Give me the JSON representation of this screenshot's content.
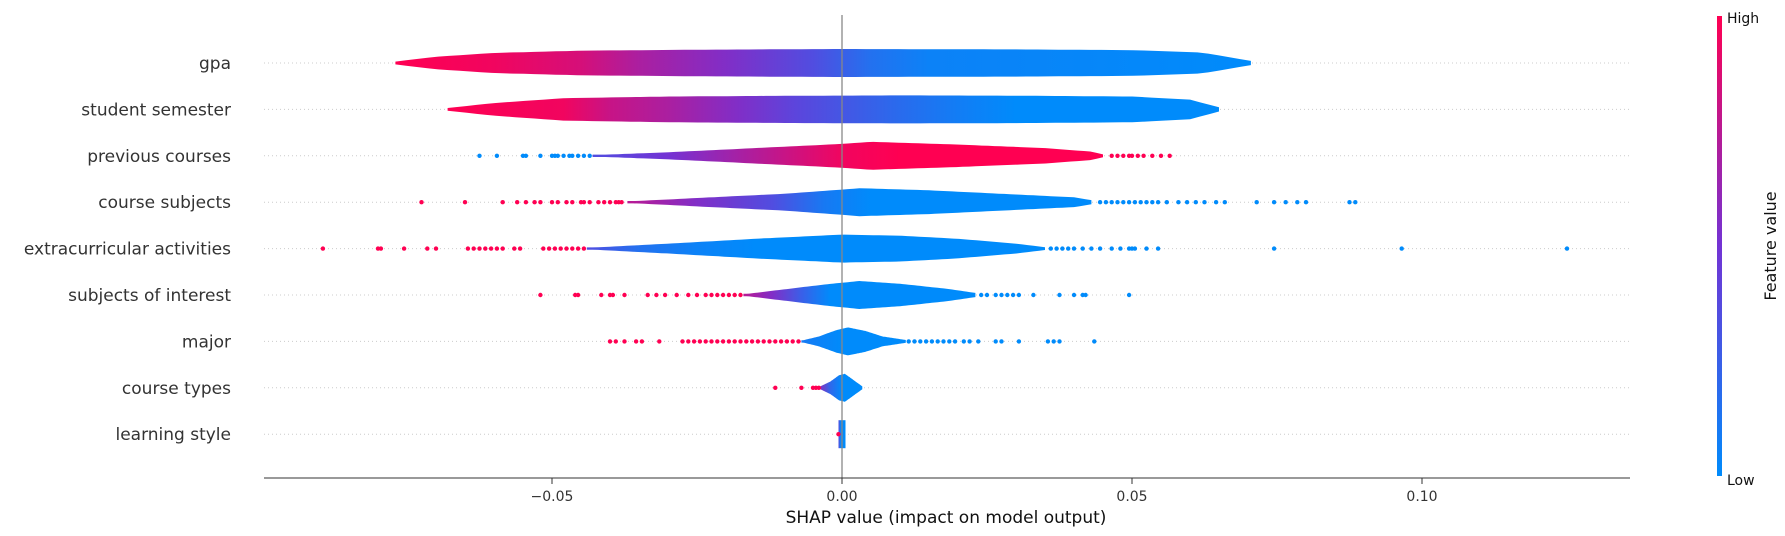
{
  "chart_data": {
    "type": "violin",
    "xlabel": "SHAP value (impact on model output)",
    "xlim": [
      -0.1,
      0.136
    ],
    "x_ticks": [
      -0.05,
      0.0,
      0.05,
      0.1
    ],
    "x_tick_labels": [
      "−0.05",
      "0.00",
      "0.05",
      "0.10"
    ],
    "colorbar": {
      "title": "Feature value",
      "high_label": "High",
      "low_label": "Low",
      "high_color": "#ff0052",
      "low_color": "#008bfb"
    },
    "features": [
      {
        "name": "gpa",
        "range": [
          -0.077,
          0.0705
        ],
        "width": [
          [
            -0.077,
            0.1
          ],
          [
            -0.07,
            0.45
          ],
          [
            -0.06,
            0.72
          ],
          [
            -0.045,
            0.88
          ],
          [
            -0.025,
            0.95
          ],
          [
            0.0,
            1.0
          ],
          [
            0.03,
            0.97
          ],
          [
            0.05,
            0.92
          ],
          [
            0.062,
            0.75
          ],
          [
            0.0705,
            0.15
          ]
        ],
        "color": [
          [
            -0.077,
            1
          ],
          [
            -0.06,
            0.95
          ],
          [
            -0.045,
            0.85
          ],
          [
            -0.035,
            0.7
          ],
          [
            -0.02,
            0.55
          ],
          [
            -0.005,
            0.35
          ],
          [
            0.005,
            0.15
          ],
          [
            0.015,
            0.05
          ],
          [
            0.0705,
            0.0
          ]
        ],
        "outliers": []
      },
      {
        "name": "student semester",
        "range": [
          -0.068,
          0.065
        ],
        "width": [
          [
            -0.068,
            0.1
          ],
          [
            -0.06,
            0.45
          ],
          [
            -0.048,
            0.8
          ],
          [
            -0.03,
            0.92
          ],
          [
            -0.01,
            0.97
          ],
          [
            0.01,
            1.0
          ],
          [
            0.03,
            0.98
          ],
          [
            0.05,
            0.92
          ],
          [
            0.06,
            0.7
          ],
          [
            0.065,
            0.15
          ]
        ],
        "color": [
          [
            -0.068,
            1
          ],
          [
            -0.048,
            0.95
          ],
          [
            -0.04,
            0.8
          ],
          [
            -0.03,
            0.7
          ],
          [
            -0.018,
            0.55
          ],
          [
            -0.008,
            0.4
          ],
          [
            0.0,
            0.3
          ],
          [
            0.01,
            0.18
          ],
          [
            0.02,
            0.08
          ],
          [
            0.03,
            0.0
          ],
          [
            0.065,
            0.0
          ]
        ],
        "outliers": []
      },
      {
        "name": "previous courses",
        "range": [
          -0.043,
          0.045
        ],
        "width": [
          [
            -0.043,
            0.05
          ],
          [
            -0.03,
            0.25
          ],
          [
            -0.015,
            0.55
          ],
          [
            0.0,
            0.85
          ],
          [
            0.005,
            1.0
          ],
          [
            0.02,
            0.8
          ],
          [
            0.035,
            0.55
          ],
          [
            0.043,
            0.3
          ],
          [
            0.045,
            0.1
          ]
        ],
        "color": [
          [
            -0.043,
            0.35
          ],
          [
            -0.03,
            0.5
          ],
          [
            -0.02,
            0.65
          ],
          [
            -0.01,
            0.8
          ],
          [
            0.0,
            0.95
          ],
          [
            0.01,
            1.0
          ],
          [
            0.045,
            1.0
          ]
        ],
        "outliers": [
          {
            "color": "low",
            "x": [
              -0.0625,
              -0.0595,
              -0.055,
              -0.0545,
              -0.052,
              -0.05,
              -0.0495,
              -0.049,
              -0.048,
              -0.047,
              -0.0465,
              -0.0455,
              -0.0445,
              -0.0435
            ]
          },
          {
            "color": "high",
            "x": [
              0.0465,
              0.0475,
              0.0485,
              0.0495,
              0.05,
              0.051,
              0.052,
              0.0535,
              0.055,
              0.0565
            ]
          }
        ]
      },
      {
        "name": "course subjects",
        "range": [
          -0.037,
          0.043
        ],
        "width": [
          [
            -0.037,
            0.05
          ],
          [
            -0.025,
            0.3
          ],
          [
            -0.01,
            0.6
          ],
          [
            0.0,
            0.9
          ],
          [
            0.003,
            1.0
          ],
          [
            0.015,
            0.85
          ],
          [
            0.03,
            0.55
          ],
          [
            0.04,
            0.35
          ],
          [
            0.043,
            0.15
          ]
        ],
        "color": [
          [
            -0.037,
            0.75
          ],
          [
            -0.025,
            0.55
          ],
          [
            -0.012,
            0.35
          ],
          [
            -0.003,
            0.1
          ],
          [
            0.005,
            0.0
          ],
          [
            0.043,
            0.0
          ]
        ],
        "outliers": [
          {
            "color": "high",
            "x": [
              -0.0725,
              -0.065,
              -0.0585,
              -0.056,
              -0.0545,
              -0.053,
              -0.052,
              -0.05,
              -0.049,
              -0.0475,
              -0.0465,
              -0.045,
              -0.0445,
              -0.0435,
              -0.042,
              -0.041,
              -0.04,
              -0.039,
              -0.0385,
              -0.038
            ]
          },
          {
            "color": "low",
            "x": [
              0.0445,
              0.0455,
              0.0465,
              0.0475,
              0.0485,
              0.0495,
              0.0505,
              0.0515,
              0.0525,
              0.0535,
              0.0545,
              0.056,
              0.058,
              0.0595,
              0.061,
              0.0625,
              0.0645,
              0.066,
              0.0715,
              0.0745,
              0.0765,
              0.0785,
              0.08,
              0.0875,
              0.0885
            ]
          }
        ]
      },
      {
        "name": "extracurricular activities",
        "range": [
          -0.044,
          0.035
        ],
        "width": [
          [
            -0.044,
            0.05
          ],
          [
            -0.03,
            0.35
          ],
          [
            -0.015,
            0.7
          ],
          [
            0.0,
            1.0
          ],
          [
            0.01,
            0.92
          ],
          [
            0.02,
            0.7
          ],
          [
            0.03,
            0.35
          ],
          [
            0.035,
            0.1
          ]
        ],
        "color": [
          [
            -0.044,
            0.35
          ],
          [
            -0.035,
            0.15
          ],
          [
            -0.025,
            0.05
          ],
          [
            -0.015,
            0.0
          ],
          [
            0.035,
            0.0
          ]
        ],
        "outliers": [
          {
            "color": "high",
            "x": [
              -0.0895,
              -0.08,
              -0.0795,
              -0.0755,
              -0.0715,
              -0.07,
              -0.0645,
              -0.0635,
              -0.0625,
              -0.0615,
              -0.0605,
              -0.0595,
              -0.0585,
              -0.0565,
              -0.0555,
              -0.0515,
              -0.0505,
              -0.0495,
              -0.0485,
              -0.0475,
              -0.0465,
              -0.0455,
              -0.0445
            ]
          },
          {
            "color": "low",
            "x": [
              0.036,
              0.037,
              0.038,
              0.039,
              0.04,
              0.0415,
              0.043,
              0.0445,
              0.0465,
              0.048,
              0.0495,
              0.05,
              0.0505,
              0.0525,
              0.0545,
              0.0745,
              0.0965,
              0.125
            ]
          }
        ]
      },
      {
        "name": "subjects of interest",
        "range": [
          -0.017,
          0.023
        ],
        "width": [
          [
            -0.017,
            0.05
          ],
          [
            -0.01,
            0.4
          ],
          [
            -0.003,
            0.75
          ],
          [
            0.003,
            1.0
          ],
          [
            0.01,
            0.8
          ],
          [
            0.018,
            0.45
          ],
          [
            0.023,
            0.15
          ]
        ],
        "color": [
          [
            -0.017,
            0.75
          ],
          [
            -0.012,
            0.55
          ],
          [
            -0.007,
            0.25
          ],
          [
            -0.002,
            0.0
          ],
          [
            0.023,
            0.0
          ]
        ],
        "outliers": [
          {
            "color": "high",
            "x": [
              -0.052,
              -0.046,
              -0.0455,
              -0.0415,
              -0.04,
              -0.0395,
              -0.0375,
              -0.0335,
              -0.032,
              -0.0305,
              -0.0285,
              -0.0265,
              -0.025,
              -0.0235,
              -0.0225,
              -0.0215,
              -0.0205,
              -0.0195,
              -0.0185,
              -0.0175
            ]
          },
          {
            "color": "low",
            "x": [
              0.024,
              0.025,
              0.0265,
              0.0275,
              0.0285,
              0.0295,
              0.0305,
              0.033,
              0.0375,
              0.04,
              0.0415,
              0.042,
              0.0495
            ]
          }
        ]
      },
      {
        "name": "major",
        "range": [
          -0.007,
          0.011
        ],
        "width": [
          [
            -0.007,
            0.05
          ],
          [
            -0.004,
            0.35
          ],
          [
            -0.001,
            0.8
          ],
          [
            0.001,
            1.0
          ],
          [
            0.004,
            0.75
          ],
          [
            0.007,
            0.35
          ],
          [
            0.011,
            0.1
          ]
        ],
        "color": [
          [
            -0.007,
            0.1
          ],
          [
            -0.004,
            0.05
          ],
          [
            0.0,
            0.0
          ],
          [
            0.011,
            0.0
          ]
        ],
        "outliers": [
          {
            "color": "high",
            "x": [
              -0.04,
              -0.039,
              -0.0375,
              -0.0355,
              -0.0345,
              -0.0315,
              -0.0275,
              -0.0265,
              -0.0255,
              -0.0245,
              -0.0235,
              -0.0225,
              -0.0215,
              -0.0205,
              -0.0195,
              -0.0185,
              -0.0175,
              -0.0165,
              -0.0155,
              -0.0145,
              -0.0135,
              -0.0125,
              -0.0115,
              -0.0105,
              -0.0095,
              -0.0085,
              -0.0075
            ]
          },
          {
            "color": "low",
            "x": [
              0.0115,
              0.0125,
              0.0135,
              0.0145,
              0.0155,
              0.0165,
              0.0175,
              0.0185,
              0.0195,
              0.021,
              0.022,
              0.0235,
              0.0265,
              0.0275,
              0.0305,
              0.0355,
              0.0365,
              0.0375,
              0.0435
            ]
          }
        ]
      },
      {
        "name": "course types",
        "range": [
          -0.004,
          0.0035
        ],
        "width": [
          [
            -0.004,
            0.05
          ],
          [
            -0.002,
            0.45
          ],
          [
            -0.0005,
            0.9
          ],
          [
            0.0005,
            1.0
          ],
          [
            0.002,
            0.55
          ],
          [
            0.0035,
            0.1
          ]
        ],
        "color": [
          [
            -0.004,
            0.6
          ],
          [
            -0.002,
            0.2
          ],
          [
            0.0,
            0.0
          ],
          [
            0.0035,
            0.0
          ]
        ],
        "outliers": [
          {
            "color": "high",
            "x": [
              -0.0115,
              -0.007,
              -0.005,
              -0.0045,
              -0.004
            ]
          }
        ]
      },
      {
        "name": "learning style",
        "range": [
          -0.0006,
          0.0006
        ],
        "width": [
          [
            -0.0006,
            1.0
          ],
          [
            0.0006,
            1.0
          ]
        ],
        "color": [
          [
            -0.0006,
            0.4
          ],
          [
            -0.0002,
            0.0
          ],
          [
            0.0006,
            0.0
          ]
        ],
        "outliers": [
          {
            "color": "high",
            "x": [
              -0.0006
            ]
          }
        ]
      }
    ]
  }
}
